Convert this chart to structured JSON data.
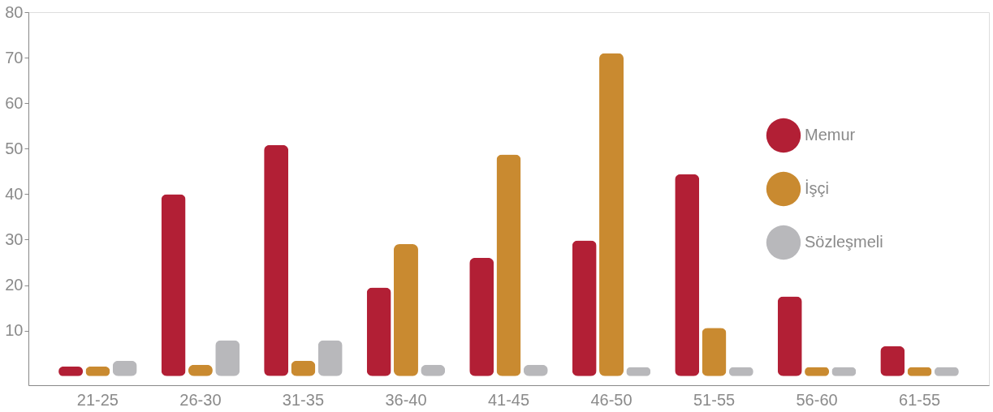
{
  "chart_data": {
    "type": "bar",
    "categories": [
      "21-25",
      "26-30",
      "31-35",
      "36-40",
      "41-45",
      "46-50",
      "51-55",
      "56-60",
      "61-55"
    ],
    "series": [
      {
        "name": "Memur",
        "color": "#b21f35",
        "values": [
          2.1,
          40,
          50.8,
          19.5,
          26,
          29.8,
          44.4,
          17.5,
          6.6
        ]
      },
      {
        "name": "İşçi",
        "color": "#c98a30",
        "values": [
          2.1,
          2.5,
          3.4,
          29,
          48.7,
          71,
          10.6,
          2,
          2
        ]
      },
      {
        "name": "Sözleşmeli",
        "color": "#b8b8bb",
        "values": [
          3.4,
          7.9,
          7.9,
          2.5,
          2.5,
          2,
          2,
          2,
          2
        ]
      }
    ],
    "ylim": [
      -2,
      80
    ],
    "yticks": [
      10,
      20,
      30,
      40,
      50,
      60,
      70,
      80
    ],
    "grid": false,
    "legend": "top right"
  }
}
